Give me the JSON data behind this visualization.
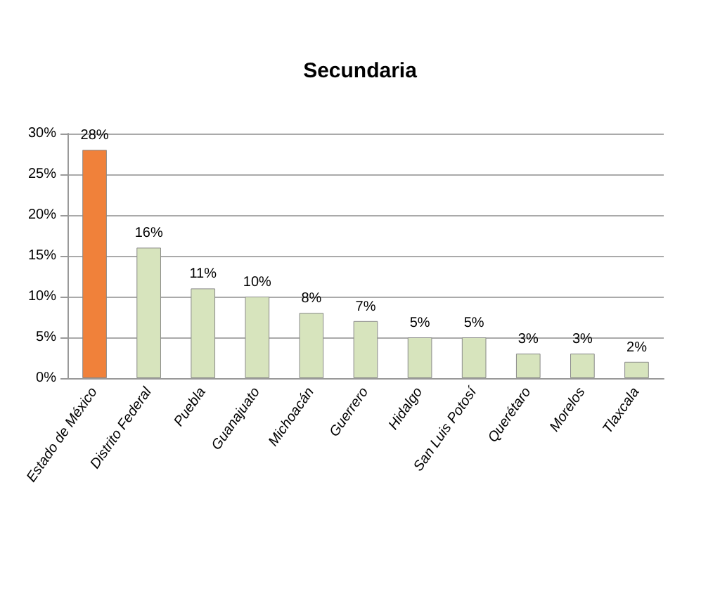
{
  "chart_data": {
    "type": "bar",
    "title": "Secundaria",
    "categories": [
      "Estado de México",
      "Distrito Federal",
      "Puebla",
      "Guanajuato",
      "Michoacán",
      "Guerrero",
      "Hidalgo",
      "San Luis Potosí",
      "Querétaro",
      "Morelos",
      "Tlaxcala"
    ],
    "values": [
      28,
      16,
      11,
      10,
      8,
      7,
      5,
      5,
      3,
      3,
      2
    ],
    "colors": [
      "#f0813a",
      "#d7e4bd",
      "#d7e4bd",
      "#d7e4bd",
      "#d7e4bd",
      "#d7e4bd",
      "#d7e4bd",
      "#d7e4bd",
      "#d7e4bd",
      "#d7e4bd",
      "#d7e4bd"
    ],
    "value_labels": [
      "28%",
      "16%",
      "11%",
      "10%",
      "8%",
      "7%",
      "5%",
      "5%",
      "3%",
      "3%",
      "2%"
    ],
    "ylim": [
      0,
      30
    ],
    "yticks": [
      {
        "value": 0,
        "label": "0%"
      },
      {
        "value": 5,
        "label": "5%"
      },
      {
        "value": 10,
        "label": "10%"
      },
      {
        "value": 15,
        "label": "15%"
      },
      {
        "value": 20,
        "label": "20%"
      },
      {
        "value": 25,
        "label": "25%"
      },
      {
        "value": 30,
        "label": "30%"
      }
    ],
    "grid": "y"
  }
}
